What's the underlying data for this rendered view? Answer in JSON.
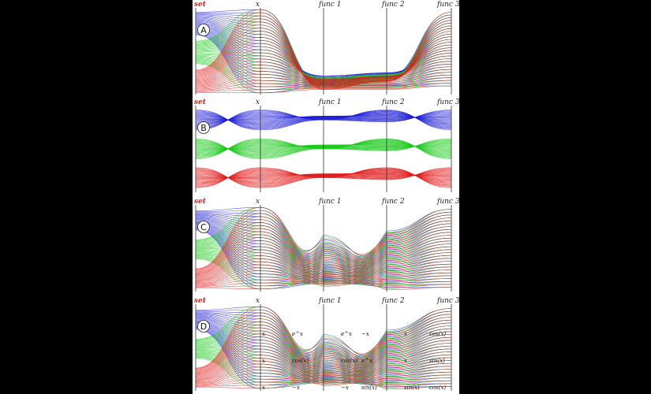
{
  "figure": {
    "panels": [
      {
        "letter": "A",
        "axes": [
          "set",
          "x",
          "func 1",
          "func 2",
          "func 3"
        ],
        "segment_labels": []
      },
      {
        "letter": "B",
        "axes": [
          "set",
          "x",
          "func 1",
          "func 2",
          "func 3"
        ],
        "segment_labels": []
      },
      {
        "letter": "C",
        "axes": [
          "set",
          "x",
          "func 1",
          "func 2",
          "func 3"
        ],
        "segment_labels": []
      },
      {
        "letter": "D",
        "axes": [
          "set",
          "x",
          "func 1",
          "func 2",
          "func 3"
        ],
        "segment_labels": [
          "x",
          "e^x",
          "e^x",
          "−x",
          "x",
          "cos(x)",
          "x",
          "cos(x)",
          "cos(x)",
          "e^x",
          "x",
          "sin(x)",
          "x",
          "−x",
          "−x",
          "sin(x)",
          "sin(x)",
          "cos(x)"
        ]
      }
    ],
    "series_colors": {
      "set_1": "#1f1fd6",
      "set_2": "#18c918",
      "set_3": "#e01c1c"
    },
    "set_label_color": "#d42020"
  }
}
